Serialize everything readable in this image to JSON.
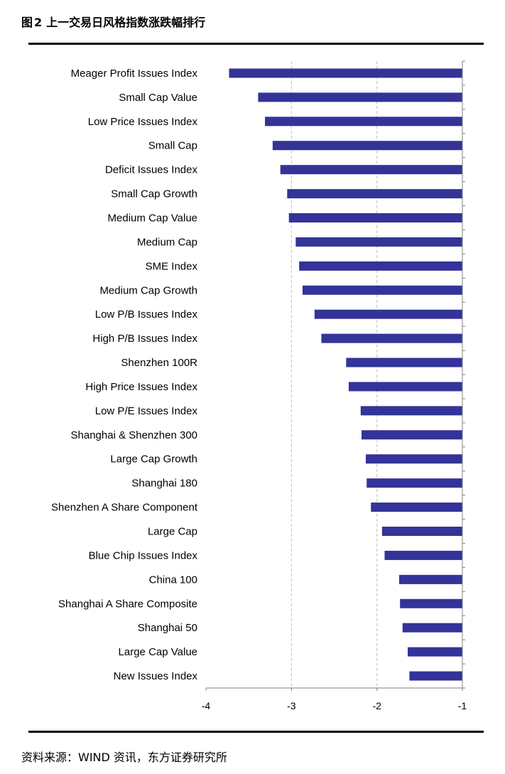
{
  "figure": {
    "label": "图",
    "number": "2",
    "title": "上一交易日风格指数涨跌幅排行"
  },
  "source": "资料来源：WIND 资讯，东方证券研究所",
  "colors": {
    "bar": "#333399",
    "grid": "#c0c0c0",
    "axis": "#808080"
  },
  "chart_data": {
    "type": "bar",
    "orientation": "horizontal",
    "title": "",
    "xlabel": "",
    "ylabel": "",
    "xlim": [
      -4,
      -1
    ],
    "xticks": [
      "-4",
      "-3",
      "-2",
      "-1"
    ],
    "grid": "vertical dashed",
    "categories": [
      "Meager Profit Issues Index",
      "Small Cap Value",
      "Low Price Issues Index",
      "Small Cap",
      "Deficit  Issues Index",
      "Small Cap Growth",
      "Medium Cap Value",
      "Medium Cap",
      "SME Index",
      "Medium Cap Growth",
      "Low P/B Issues Index",
      "High P/B Issues Index",
      "Shenzhen 100R",
      "High Price Issues Index",
      "Low P/E Issues Index",
      "Shanghai & Shenzhen 300",
      "Large Cap Growth",
      "Shanghai 180",
      "Shenzhen A Share Component",
      "Large Cap",
      "Blue Chip Issues Index",
      "China 100",
      "Shanghai A Share Composite",
      "Shanghai 50",
      "Large Cap Value",
      "New Issues Index"
    ],
    "values": [
      -3.73,
      -3.39,
      -3.31,
      -3.22,
      -3.13,
      -3.05,
      -3.03,
      -2.95,
      -2.91,
      -2.87,
      -2.73,
      -2.65,
      -2.36,
      -2.33,
      -2.19,
      -2.18,
      -2.13,
      -2.12,
      -2.07,
      -1.94,
      -1.91,
      -1.74,
      -1.73,
      -1.7,
      -1.64,
      -1.62
    ]
  }
}
